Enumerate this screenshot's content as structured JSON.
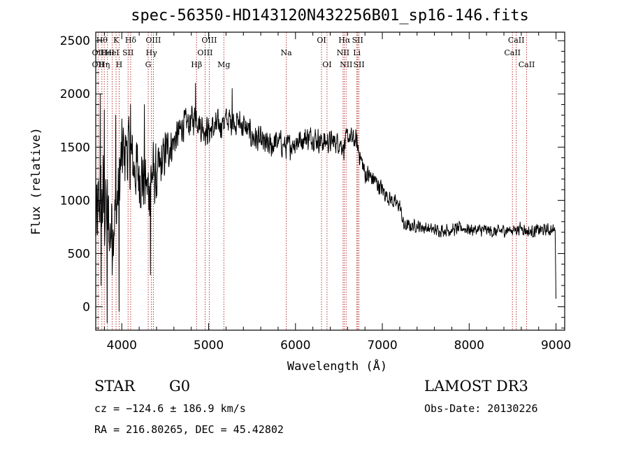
{
  "chart_data": {
    "type": "line",
    "title": "spec-56350-HD143120N432256B01_sp16-146.fits",
    "xlabel": "Wavelength (Å)",
    "ylabel": "Flux (relative)",
    "xlim": [
      3700,
      9100
    ],
    "ylim": [
      -220,
      2580
    ],
    "xticks": [
      4000,
      5000,
      6000,
      7000,
      8000,
      9000
    ],
    "yticks": [
      0,
      500,
      1000,
      1500,
      2000,
      2500
    ],
    "grid": false,
    "legend": "none",
    "line_color": "#000000",
    "marker_color": "#b22222",
    "anchors": {
      "x": [
        3700,
        3740,
        3780,
        3820,
        3860,
        3900,
        3950,
        4000,
        4050,
        4100,
        4150,
        4200,
        4250,
        4300,
        4350,
        4400,
        4450,
        4500,
        4600,
        4700,
        4800,
        4860,
        4900,
        5000,
        5100,
        5200,
        5300,
        5400,
        5500,
        5600,
        5700,
        5800,
        5900,
        6000,
        6100,
        6200,
        6300,
        6400,
        6500,
        6560,
        6600,
        6700,
        6750,
        6800,
        6900,
        7000,
        7100,
        7200,
        7250,
        7300,
        7400,
        7500,
        7600,
        7700,
        7800,
        7900,
        8000,
        8100,
        8200,
        8300,
        8400,
        8500,
        8600,
        8700,
        8800,
        8900,
        8990,
        9000
      ],
      "y": [
        700,
        900,
        1000,
        900,
        700,
        800,
        1000,
        1400,
        1500,
        1400,
        1300,
        1250,
        1200,
        1100,
        1250,
        1200,
        1300,
        1450,
        1550,
        1700,
        1750,
        1800,
        1700,
        1650,
        1700,
        1750,
        1750,
        1700,
        1600,
        1550,
        1500,
        1550,
        1500,
        1550,
        1580,
        1600,
        1550,
        1550,
        1550,
        1500,
        1600,
        1550,
        1400,
        1250,
        1200,
        1100,
        1000,
        950,
        750,
        760,
        760,
        740,
        720,
        720,
        720,
        740,
        730,
        720,
        720,
        700,
        720,
        720,
        740,
        700,
        720,
        720,
        720,
        20
      ]
    },
    "noise_amplitude": [
      [
        3700,
        600
      ],
      [
        4000,
        450
      ],
      [
        4400,
        350
      ],
      [
        4600,
        180
      ],
      [
        6800,
        120
      ],
      [
        7300,
        70
      ],
      [
        9000,
        70
      ]
    ],
    "spikes": [
      {
        "x": 3750,
        "y": 2000
      },
      {
        "x": 3760,
        "y": 200
      },
      {
        "x": 3800,
        "y": 1850
      },
      {
        "x": 3830,
        "y": -150
      },
      {
        "x": 3890,
        "y": 300
      },
      {
        "x": 3930,
        "y": 1800
      },
      {
        "x": 3970,
        "y": -40
      },
      {
        "x": 4100,
        "y": 1900
      },
      {
        "x": 4260,
        "y": 1900
      },
      {
        "x": 4330,
        "y": 300
      },
      {
        "x": 4850,
        "y": 2100
      },
      {
        "x": 5270,
        "y": 2050
      }
    ],
    "line_markers": [
      {
        "x": 3727,
        "labels": [
          "OII",
          "OII"
        ],
        "rows": [
          1,
          2
        ]
      },
      {
        "x": 3771,
        "labels": [
          "Hθ"
        ],
        "rows": [
          0
        ]
      },
      {
        "x": 3798,
        "labels": [
          "Hη"
        ],
        "rows": [
          2
        ]
      },
      {
        "x": 3835,
        "labels": [
          "HeI"
        ],
        "rows": [
          1
        ]
      },
      {
        "x": 3889,
        "labels": [
          "HeI"
        ],
        "rows": [
          1
        ]
      },
      {
        "x": 3934,
        "labels": [
          "K"
        ],
        "rows": [
          0
        ]
      },
      {
        "x": 3969,
        "labels": [
          "H"
        ],
        "rows": [
          2
        ]
      },
      {
        "x": 4072,
        "labels": [
          "SII"
        ],
        "rows": [
          1
        ]
      },
      {
        "x": 4102,
        "labels": [
          "Hδ"
        ],
        "rows": [
          0
        ]
      },
      {
        "x": 4304,
        "labels": [
          "G"
        ],
        "rows": [
          2
        ]
      },
      {
        "x": 4341,
        "labels": [
          "Hγ"
        ],
        "rows": [
          1
        ]
      },
      {
        "x": 4363,
        "labels": [
          "OIII"
        ],
        "rows": [
          0
        ]
      },
      {
        "x": 4861,
        "labels": [
          "Hβ"
        ],
        "rows": [
          2
        ]
      },
      {
        "x": 4959,
        "labels": [
          "OIII"
        ],
        "rows": [
          1
        ]
      },
      {
        "x": 5007,
        "labels": [
          "OIII"
        ],
        "rows": [
          0
        ]
      },
      {
        "x": 5175,
        "labels": [
          "Mg"
        ],
        "rows": [
          2
        ]
      },
      {
        "x": 5894,
        "labels": [
          "Na"
        ],
        "rows": [
          1
        ]
      },
      {
        "x": 6300,
        "labels": [
          "OI"
        ],
        "rows": [
          0
        ]
      },
      {
        "x": 6363,
        "labels": [
          "OI"
        ],
        "rows": [
          2
        ]
      },
      {
        "x": 6548,
        "labels": [
          "NII"
        ],
        "rows": [
          1
        ]
      },
      {
        "x": 6563,
        "labels": [
          "Hα"
        ],
        "rows": [
          0
        ]
      },
      {
        "x": 6583,
        "labels": [
          "NII"
        ],
        "rows": [
          2
        ]
      },
      {
        "x": 6707,
        "labels": [
          "Li"
        ],
        "rows": [
          1
        ]
      },
      {
        "x": 6716,
        "labels": [
          "SII"
        ],
        "rows": [
          0
        ]
      },
      {
        "x": 6731,
        "labels": [
          "SII"
        ],
        "rows": [
          2
        ]
      },
      {
        "x": 8498,
        "labels": [
          "CaII"
        ],
        "rows": [
          1
        ]
      },
      {
        "x": 8542,
        "labels": [
          "CaII"
        ],
        "rows": [
          0
        ]
      },
      {
        "x": 8662,
        "labels": [
          "CaII"
        ],
        "rows": [
          2
        ]
      }
    ]
  },
  "info": {
    "class_label": "STAR",
    "subclass": "G0",
    "survey": "LAMOST DR3",
    "cz": "cz = −124.6 ± 186.9 km/s",
    "obs_date": "Obs-Date: 20130226",
    "coords": "RA = 216.80265, DEC =  45.42802"
  }
}
